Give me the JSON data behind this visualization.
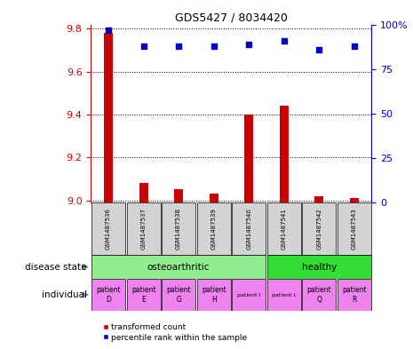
{
  "title": "GDS5427 / 8034420",
  "samples": [
    "GSM1487536",
    "GSM1487537",
    "GSM1487538",
    "GSM1487539",
    "GSM1487540",
    "GSM1487541",
    "GSM1487542",
    "GSM1487543"
  ],
  "red_values": [
    9.78,
    9.08,
    9.05,
    9.03,
    9.4,
    9.44,
    9.02,
    9.01
  ],
  "blue_values": [
    97,
    88,
    88,
    88,
    89,
    91,
    86,
    88
  ],
  "ylim_left": [
    8.99,
    9.82
  ],
  "ylim_right": [
    0,
    100
  ],
  "yticks_left": [
    9.0,
    9.2,
    9.4,
    9.6,
    9.8
  ],
  "yticks_right": [
    0,
    25,
    50,
    75,
    100
  ],
  "disease_osteo_range": [
    0,
    4
  ],
  "disease_healthy_range": [
    5,
    7
  ],
  "individuals": [
    "patient\nD",
    "patient\nE",
    "patient\nG",
    "patient\nH",
    "patient I",
    "patient L",
    "patient\nQ",
    "patient\nR"
  ],
  "individual_small": [
    false,
    false,
    false,
    false,
    true,
    true,
    false,
    false
  ],
  "individual_colors": [
    "#ee82ee",
    "#ee82ee",
    "#ee82ee",
    "#ee82ee",
    "#ee82ee",
    "#ee82ee",
    "#ee82ee",
    "#ee82ee"
  ],
  "disease_color_osteo": "#90ee90",
  "disease_color_healthy": "#33dd33",
  "sample_bg_color": "#d3d3d3",
  "red_color": "#cc0000",
  "blue_color": "#0000cc",
  "legend_red": "transformed count",
  "legend_blue": "percentile rank within the sample",
  "label_disease": "disease state",
  "label_individual": "individual",
  "bar_width": 0.25
}
